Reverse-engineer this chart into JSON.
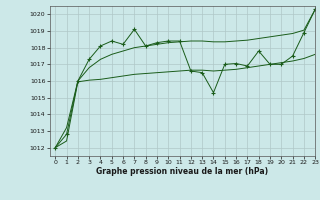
{
  "xlabel": "Graphe pression niveau de la mer (hPa)",
  "background_color": "#cce8e8",
  "grid_color": "#b0c8c8",
  "line_color": "#1a5c1a",
  "ylim": [
    1011.5,
    1020.5
  ],
  "xlim": [
    -0.5,
    23
  ],
  "yticks": [
    1012,
    1013,
    1014,
    1015,
    1016,
    1017,
    1018,
    1019,
    1020
  ],
  "xticks": [
    0,
    1,
    2,
    3,
    4,
    5,
    6,
    7,
    8,
    9,
    10,
    11,
    12,
    13,
    14,
    15,
    16,
    17,
    18,
    19,
    20,
    21,
    22,
    23
  ],
  "series_main": [
    1012,
    1012.8,
    1016,
    1017.3,
    1018.1,
    1018.4,
    1018.2,
    1019.1,
    1018.1,
    1018.3,
    1018.4,
    1018.4,
    1016.6,
    1016.5,
    1015.3,
    1017.0,
    1017.05,
    1016.9,
    1017.8,
    1017.0,
    1017.0,
    1017.5,
    1018.9,
    1020.3
  ],
  "series_low": [
    1012,
    1012.4,
    1015.95,
    1016.05,
    1016.1,
    1016.2,
    1016.3,
    1016.4,
    1016.45,
    1016.5,
    1016.55,
    1016.6,
    1016.65,
    1016.65,
    1016.6,
    1016.65,
    1016.7,
    1016.8,
    1016.9,
    1017.0,
    1017.1,
    1017.2,
    1017.35,
    1017.6
  ],
  "series_high": [
    1012,
    1013.2,
    1016.0,
    1016.8,
    1017.3,
    1017.6,
    1017.8,
    1018.0,
    1018.1,
    1018.2,
    1018.3,
    1018.35,
    1018.4,
    1018.4,
    1018.35,
    1018.35,
    1018.4,
    1018.45,
    1018.55,
    1018.65,
    1018.75,
    1018.85,
    1019.05,
    1020.3
  ]
}
